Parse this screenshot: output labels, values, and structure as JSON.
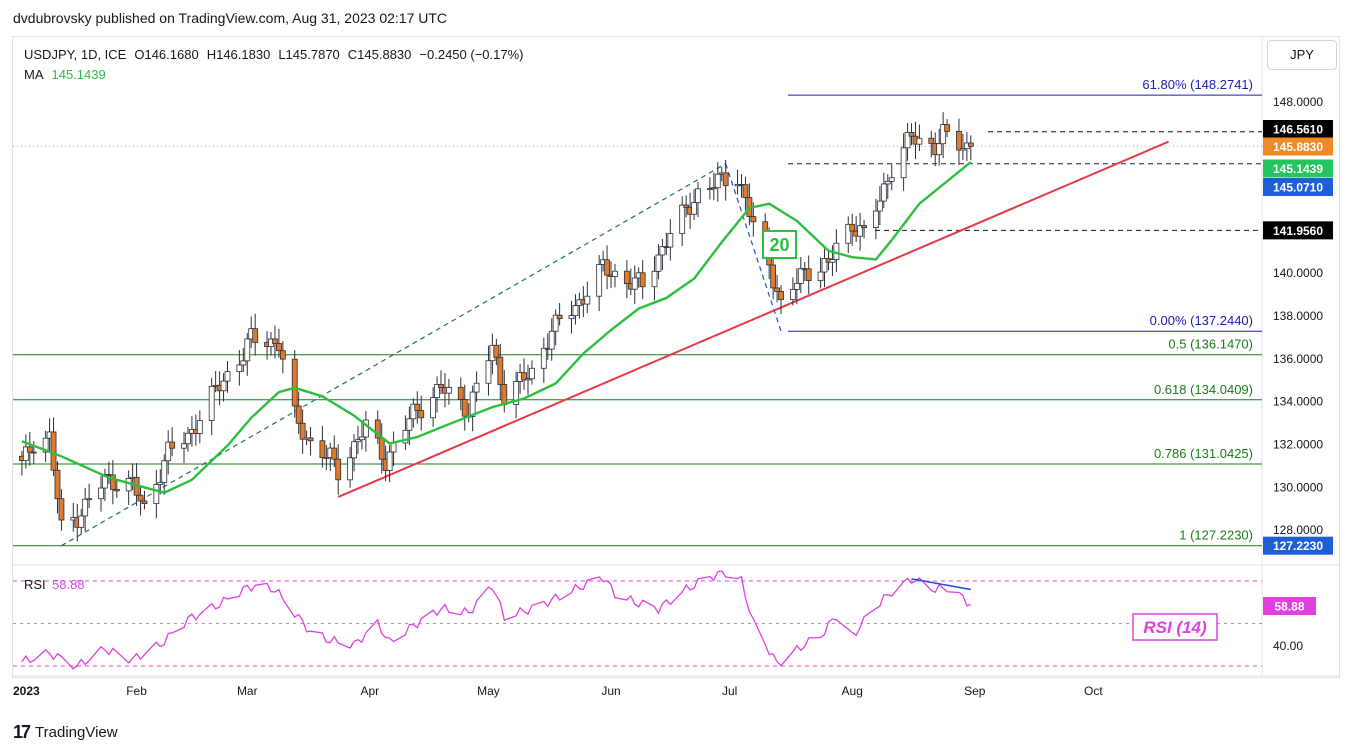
{
  "header": {
    "published": "dvdubrovsky published on TradingView.com, Aug 31, 2023 02:17 UTC"
  },
  "legend": {
    "symbol": "USDJPY, 1D, ICE",
    "open": "O146.1680",
    "high": "H146.1830",
    "low": "L145.7870",
    "close": "C145.8830",
    "change": "−0.2450 (−0.17%)",
    "ma_label": "MA",
    "ma_value": "145.1439"
  },
  "currency_button": "JPY",
  "footer": {
    "brand": "TradingView",
    "logo": "tradingview-logo"
  },
  "colors": {
    "bull": "#ffffff",
    "bear": "#e07b2b",
    "ma": "#2bbf3c",
    "trend": "#e53946",
    "fib": "#1b7a1b",
    "level_blue": "#1a1ab5",
    "rsi": "#e040e0",
    "divergence": "#1e4fd8"
  },
  "chart_data": [
    {
      "type": "candlestick",
      "title": "USDJPY, 1D, ICE",
      "x_ticks": [
        "2023",
        "Feb",
        "Mar",
        "Apr",
        "May",
        "Jun",
        "Jul",
        "Aug",
        "Sep",
        "Oct"
      ],
      "y_ticks": [
        "128.0000",
        "130.0000",
        "132.0000",
        "134.0000",
        "136.0000",
        "138.0000",
        "140.0000",
        "148.0000"
      ],
      "ylim": [
        126.3,
        150.5
      ],
      "close_points": [
        [
          "2023-01-03",
          131.0
        ],
        [
          "2023-01-06",
          132.1
        ],
        [
          "2023-01-10",
          132.3
        ],
        [
          "2023-01-13",
          128.0
        ],
        [
          "2023-01-17",
          128.6
        ],
        [
          "2023-01-24",
          130.3
        ],
        [
          "2023-01-31",
          130.1
        ],
        [
          "2023-02-03",
          128.9
        ],
        [
          "2023-02-09",
          131.6
        ],
        [
          "2023-02-14",
          132.3
        ],
        [
          "2023-02-20",
          134.2
        ],
        [
          "2023-02-28",
          136.2
        ],
        [
          "2023-03-02",
          136.9
        ],
        [
          "2023-03-09",
          136.7
        ],
        [
          "2023-03-13",
          133.2
        ],
        [
          "2023-03-17",
          132.0
        ],
        [
          "2023-03-22",
          131.3
        ],
        [
          "2023-03-24",
          130.7
        ],
        [
          "2023-03-31",
          132.8
        ],
        [
          "2023-04-05",
          131.2
        ],
        [
          "2023-04-12",
          133.4
        ],
        [
          "2023-04-19",
          134.6
        ],
        [
          "2023-04-26",
          133.6
        ],
        [
          "2023-05-02",
          136.5
        ],
        [
          "2023-05-05",
          134.3
        ],
        [
          "2023-05-12",
          135.3
        ],
        [
          "2023-05-17",
          137.3
        ],
        [
          "2023-05-24",
          138.6
        ],
        [
          "2023-05-30",
          140.2
        ],
        [
          "2023-06-02",
          139.9
        ],
        [
          "2023-06-05",
          139.6
        ],
        [
          "2023-06-09",
          139.4
        ],
        [
          "2023-06-16",
          141.8
        ],
        [
          "2023-06-23",
          143.7
        ],
        [
          "2023-06-30",
          144.4
        ],
        [
          "2023-07-03",
          144.5
        ],
        [
          "2023-07-07",
          142.2
        ],
        [
          "2023-07-10",
          141.2
        ],
        [
          "2023-07-14",
          138.4
        ],
        [
          "2023-07-20",
          140.1
        ],
        [
          "2023-07-26",
          140.3
        ],
        [
          "2023-07-28",
          141.2
        ],
        [
          "2023-08-01",
          142.3
        ],
        [
          "2023-08-04",
          141.7
        ],
        [
          "2023-08-08",
          143.4
        ],
        [
          "2023-08-11",
          144.9
        ],
        [
          "2023-08-16",
          146.3
        ],
        [
          "2023-08-22",
          145.9
        ],
        [
          "2023-08-24",
          146.4
        ],
        [
          "2023-08-29",
          145.9
        ],
        [
          "2023-08-31",
          145.883
        ]
      ],
      "ma": {
        "label": "20",
        "points": [
          [
            "2023-01-03",
            132.1
          ],
          [
            "2023-01-13",
            131.4
          ],
          [
            "2023-01-25",
            130.4
          ],
          [
            "2023-02-02",
            130.0
          ],
          [
            "2023-02-08",
            129.7
          ],
          [
            "2023-02-15",
            130.3
          ],
          [
            "2023-02-24",
            131.9
          ],
          [
            "2023-03-02",
            133.2
          ],
          [
            "2023-03-09",
            134.4
          ],
          [
            "2023-03-13",
            134.6
          ],
          [
            "2023-03-20",
            134.2
          ],
          [
            "2023-03-28",
            133.3
          ],
          [
            "2023-04-06",
            132.0
          ],
          [
            "2023-04-13",
            132.3
          ],
          [
            "2023-04-21",
            132.9
          ],
          [
            "2023-05-02",
            133.7
          ],
          [
            "2023-05-10",
            134.1
          ],
          [
            "2023-05-18",
            134.8
          ],
          [
            "2023-05-25",
            136.2
          ],
          [
            "2023-06-01",
            137.3
          ],
          [
            "2023-06-08",
            138.3
          ],
          [
            "2023-06-15",
            138.8
          ],
          [
            "2023-06-22",
            139.7
          ],
          [
            "2023-06-29",
            141.4
          ],
          [
            "2023-07-06",
            143.0
          ],
          [
            "2023-07-11",
            143.2
          ],
          [
            "2023-07-18",
            142.4
          ],
          [
            "2023-07-26",
            141.0
          ],
          [
            "2023-08-01",
            140.7
          ],
          [
            "2023-08-07",
            140.6
          ],
          [
            "2023-08-11",
            141.5
          ],
          [
            "2023-08-18",
            143.2
          ],
          [
            "2023-08-24",
            144.1
          ],
          [
            "2023-08-31",
            145.1439
          ]
        ]
      },
      "trendline": {
        "points": [
          [
            "2023-03-24",
            129.5
          ],
          [
            "2023-07-14",
            137.2
          ],
          [
            "2023-10-20",
            146.1
          ]
        ]
      },
      "channel_line": {
        "points": [
          [
            "2023-01-13",
            127.223
          ],
          [
            "2023-06-30",
            145.07
          ]
        ]
      },
      "retrace_line": {
        "points": [
          [
            "2023-06-30",
            145.07
          ],
          [
            "2023-07-14",
            137.244
          ]
        ]
      },
      "fib_levels": [
        {
          "label": "61.80% (148.2741)",
          "value": 148.2741,
          "color": "level_blue"
        },
        {
          "label": "0.00% (137.2440)",
          "value": 137.244,
          "color": "level_blue"
        },
        {
          "label": "0.5 (136.1470)",
          "value": 136.147,
          "color": "fib"
        },
        {
          "label": "0.618 (134.0409)",
          "value": 134.0409,
          "color": "fib"
        },
        {
          "label": "0.786 (131.0425)",
          "value": 131.0425,
          "color": "fib"
        },
        {
          "label": "1 (127.2230)",
          "value": 127.223,
          "color": "fib"
        }
      ],
      "dashed_levels": [
        146.561,
        145.071,
        141.956
      ],
      "close_line": 145.883,
      "price_tags": [
        {
          "text": "146.5610",
          "value": 146.561,
          "bg": "#000000",
          "fg": "#ffffff"
        },
        {
          "text": "145.8830",
          "value": 145.883,
          "bg": "#f08a24",
          "fg": "#ffffff"
        },
        {
          "text": "145.1439",
          "value": 145.1439,
          "bg": "#22c55e",
          "fg": "#ffffff"
        },
        {
          "text": "145.0710",
          "value": 145.071,
          "bg": "#1f5fd6",
          "fg": "#ffffff"
        },
        {
          "text": "141.9560",
          "value": 141.956,
          "bg": "#000000",
          "fg": "#ffffff"
        },
        {
          "text": "127.2230",
          "value": 127.223,
          "bg": "#1f5fd6",
          "fg": "#ffffff"
        }
      ]
    },
    {
      "type": "line",
      "title": "RSI (14)",
      "legend_label": "RSI",
      "legend_value": "58.88",
      "y_ticks": [
        "40.00"
      ],
      "ylim": [
        25,
        80
      ],
      "bands": [
        70,
        30
      ],
      "midline": 50,
      "last_value_tag": "58.88",
      "points": [
        [
          "2023-01-03",
          32
        ],
        [
          "2023-01-10",
          36
        ],
        [
          "2023-01-17",
          30
        ],
        [
          "2023-01-24",
          38
        ],
        [
          "2023-01-31",
          33
        ],
        [
          "2023-02-07",
          40
        ],
        [
          "2023-02-14",
          52
        ],
        [
          "2023-02-21",
          58
        ],
        [
          "2023-02-28",
          66
        ],
        [
          "2023-03-03",
          68
        ],
        [
          "2023-03-08",
          66
        ],
        [
          "2023-03-13",
          55
        ],
        [
          "2023-03-17",
          46
        ],
        [
          "2023-03-22",
          42
        ],
        [
          "2023-03-28",
          40
        ],
        [
          "2023-04-03",
          50
        ],
        [
          "2023-04-06",
          41
        ],
        [
          "2023-04-12",
          49
        ],
        [
          "2023-04-19",
          57
        ],
        [
          "2023-04-26",
          55
        ],
        [
          "2023-05-02",
          68
        ],
        [
          "2023-05-05",
          53
        ],
        [
          "2023-05-12",
          57
        ],
        [
          "2023-05-17",
          61
        ],
        [
          "2023-05-24",
          67
        ],
        [
          "2023-05-30",
          72
        ],
        [
          "2023-06-02",
          64
        ],
        [
          "2023-06-07",
          60
        ],
        [
          "2023-06-13",
          57
        ],
        [
          "2023-06-19",
          65
        ],
        [
          "2023-06-26",
          72
        ],
        [
          "2023-06-30",
          74
        ],
        [
          "2023-07-04",
          70
        ],
        [
          "2023-07-07",
          50
        ],
        [
          "2023-07-13",
          31
        ],
        [
          "2023-07-19",
          39
        ],
        [
          "2023-07-24",
          44
        ],
        [
          "2023-07-28",
          54
        ],
        [
          "2023-08-01",
          44
        ],
        [
          "2023-08-07",
          58
        ],
        [
          "2023-08-11",
          65
        ],
        [
          "2023-08-16",
          71
        ],
        [
          "2023-08-22",
          66
        ],
        [
          "2023-08-25",
          67
        ],
        [
          "2023-08-29",
          62
        ],
        [
          "2023-08-31",
          58.88
        ]
      ],
      "divergence": {
        "points": [
          [
            "2023-08-16",
            71
          ],
          [
            "2023-08-31",
            66
          ]
        ]
      }
    }
  ]
}
